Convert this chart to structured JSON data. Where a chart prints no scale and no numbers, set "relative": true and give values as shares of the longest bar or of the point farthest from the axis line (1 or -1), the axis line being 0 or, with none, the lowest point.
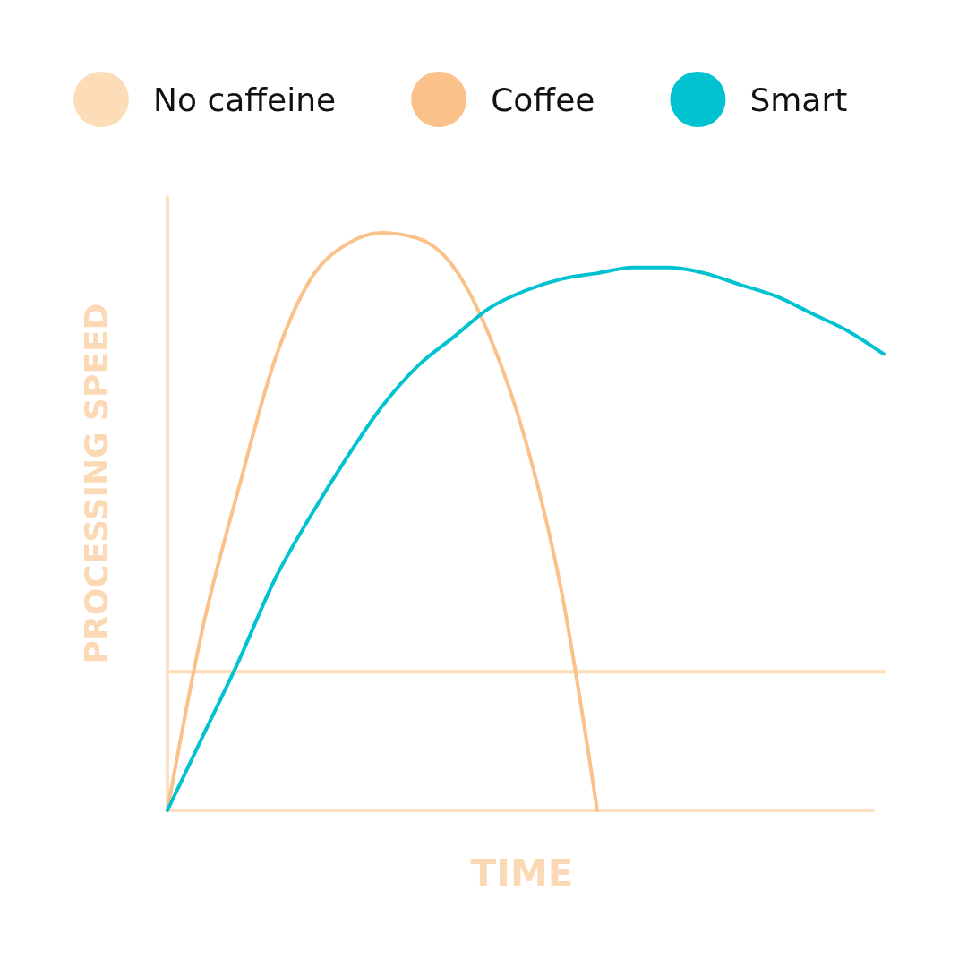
{
  "chart_data": {
    "type": "line",
    "relative": true,
    "xlabel": "TIME",
    "ylabel": "PROCESSING SPEED",
    "legend": "top",
    "ref_lines": [
      {
        "axis": "y",
        "value": 0,
        "color": "#fbe0c4"
      }
    ],
    "line_style": "solid",
    "categories": [
      null,
      null,
      null,
      null,
      null,
      null,
      null,
      null,
      null,
      null,
      null,
      null,
      null,
      null,
      null,
      null,
      null,
      null,
      null,
      null,
      null
    ],
    "series": [
      {
        "name": "No caffeine",
        "color": "#fddcb8",
        "values": [
          0.24,
          0.24,
          0.24,
          0.24,
          0.24,
          0.24,
          0.24,
          0.24,
          0.24,
          0.24,
          0.24,
          0.24,
          0.24,
          0.24,
          0.24,
          0.24,
          0.24,
          0.24,
          0.24,
          0.24,
          0.24
        ]
      },
      {
        "name": "Coffee",
        "color": "#fbc18a",
        "values": [
          0,
          0.32,
          0.56,
          0.78,
          0.92,
          0.98,
          1,
          0.99,
          0.94,
          0.82,
          0.64,
          0.38,
          0,
          null,
          null,
          null,
          null,
          null,
          null,
          null,
          null
        ]
      },
      {
        "name": "Smart",
        "color": "#00c2d1",
        "values": [
          0,
          0.13,
          0.26,
          0.4,
          0.51,
          0.61,
          0.7,
          0.77,
          0.82,
          0.87,
          0.9,
          0.92,
          0.93,
          0.94,
          0.94,
          0.93,
          0.91,
          0.89,
          0.86,
          0.83,
          0.79
        ]
      }
    ]
  }
}
